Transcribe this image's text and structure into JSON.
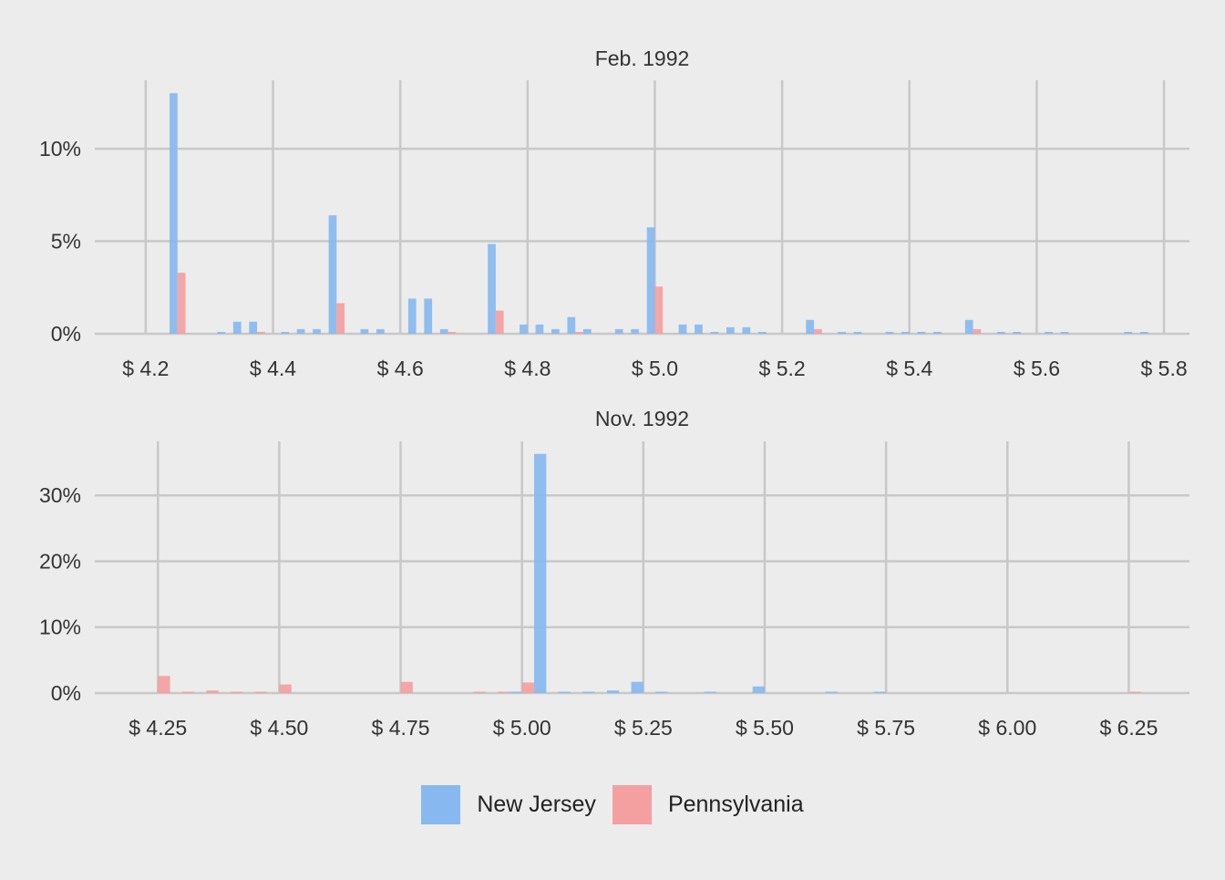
{
  "colors": {
    "background": "#ececec",
    "grid": "#c8c8c8",
    "text": "#333333"
  },
  "legend": {
    "placement": "bottom",
    "items": [
      {
        "label": "New Jersey",
        "color": "#87b9f0"
      },
      {
        "label": "Pennsylvania",
        "color": "#f4a0a0"
      }
    ]
  },
  "chart_data": [
    {
      "type": "bar",
      "title": "Feb. 1992",
      "xlabel": "",
      "ylabel": "",
      "xlim": [
        4.12,
        5.84
      ],
      "ylim": [
        0,
        13.7
      ],
      "x_ticks": [
        4.2,
        4.4,
        4.6,
        4.8,
        5.0,
        5.2,
        5.4,
        5.6,
        5.8
      ],
      "x_tick_labels": [
        "$ 4.2",
        "$ 4.4",
        "$ 4.6",
        "$ 4.8",
        "$ 5.0",
        "$ 5.2",
        "$ 5.4",
        "$ 5.6",
        "$ 5.8"
      ],
      "y_ticks": [
        0,
        5,
        10
      ],
      "y_tick_labels": [
        "0%",
        "5%",
        "10%"
      ],
      "grid": true,
      "bin_width": 0.025,
      "series": [
        {
          "name": "New Jersey",
          "bins": [
            {
              "x": 4.25,
              "y": 13.0
            },
            {
              "x": 4.325,
              "y": 0.1
            },
            {
              "x": 4.35,
              "y": 0.65
            },
            {
              "x": 4.375,
              "y": 0.65
            },
            {
              "x": 4.425,
              "y": 0.1
            },
            {
              "x": 4.45,
              "y": 0.25
            },
            {
              "x": 4.475,
              "y": 0.25
            },
            {
              "x": 4.5,
              "y": 6.4
            },
            {
              "x": 4.55,
              "y": 0.25
            },
            {
              "x": 4.575,
              "y": 0.25
            },
            {
              "x": 4.625,
              "y": 1.9
            },
            {
              "x": 4.65,
              "y": 1.9
            },
            {
              "x": 4.675,
              "y": 0.25
            },
            {
              "x": 4.75,
              "y": 4.85
            },
            {
              "x": 4.8,
              "y": 0.5
            },
            {
              "x": 4.825,
              "y": 0.5
            },
            {
              "x": 4.85,
              "y": 0.25
            },
            {
              "x": 4.875,
              "y": 0.9
            },
            {
              "x": 4.9,
              "y": 0.25
            },
            {
              "x": 4.95,
              "y": 0.25
            },
            {
              "x": 4.975,
              "y": 0.25
            },
            {
              "x": 5.0,
              "y": 5.75
            },
            {
              "x": 5.05,
              "y": 0.5
            },
            {
              "x": 5.075,
              "y": 0.5
            },
            {
              "x": 5.1,
              "y": 0.1
            },
            {
              "x": 5.125,
              "y": 0.35
            },
            {
              "x": 5.15,
              "y": 0.35
            },
            {
              "x": 5.175,
              "y": 0.1
            },
            {
              "x": 5.25,
              "y": 0.75
            },
            {
              "x": 5.3,
              "y": 0.1
            },
            {
              "x": 5.325,
              "y": 0.1
            },
            {
              "x": 5.375,
              "y": 0.1
            },
            {
              "x": 5.4,
              "y": 0.1
            },
            {
              "x": 5.425,
              "y": 0.1
            },
            {
              "x": 5.45,
              "y": 0.1
            },
            {
              "x": 5.5,
              "y": 0.75
            },
            {
              "x": 5.55,
              "y": 0.1
            },
            {
              "x": 5.575,
              "y": 0.1
            },
            {
              "x": 5.625,
              "y": 0.1
            },
            {
              "x": 5.65,
              "y": 0.1
            },
            {
              "x": 5.75,
              "y": 0.1
            },
            {
              "x": 5.775,
              "y": 0.1
            }
          ]
        },
        {
          "name": "Pennsylvania",
          "bins": [
            {
              "x": 4.25,
              "y": 3.3
            },
            {
              "x": 4.375,
              "y": 0.1
            },
            {
              "x": 4.5,
              "y": 1.65
            },
            {
              "x": 4.675,
              "y": 0.1
            },
            {
              "x": 4.75,
              "y": 1.25
            },
            {
              "x": 4.875,
              "y": 0.1
            },
            {
              "x": 5.0,
              "y": 2.55
            },
            {
              "x": 5.25,
              "y": 0.25
            },
            {
              "x": 5.5,
              "y": 0.25
            }
          ]
        }
      ]
    },
    {
      "type": "bar",
      "title": "Nov. 1992",
      "xlabel": "",
      "ylabel": "",
      "xlim": [
        4.12,
        6.375
      ],
      "ylim": [
        0,
        38.2
      ],
      "x_ticks": [
        4.25,
        4.5,
        4.75,
        5.0,
        5.25,
        5.5,
        5.75,
        6.0,
        6.25
      ],
      "x_tick_labels": [
        "$ 4.25",
        "$ 4.50",
        "$ 4.75",
        "$ 5.00",
        "$ 5.25",
        "$ 5.50",
        "$ 5.75",
        "$ 6.00",
        "$ 6.25"
      ],
      "y_ticks": [
        0,
        10,
        20,
        30
      ],
      "y_tick_labels": [
        "0%",
        "10%",
        "20%",
        "30%"
      ],
      "grid": true,
      "bin_width": 0.05,
      "series": [
        {
          "name": "New Jersey",
          "bins": [
            {
              "x": 5.0,
              "y": 0.2
            },
            {
              "x": 5.05,
              "y": 36.3
            },
            {
              "x": 5.1,
              "y": 0.2
            },
            {
              "x": 5.15,
              "y": 0.2
            },
            {
              "x": 5.2,
              "y": 0.4
            },
            {
              "x": 5.25,
              "y": 1.7
            },
            {
              "x": 5.3,
              "y": 0.2
            },
            {
              "x": 5.4,
              "y": 0.2
            },
            {
              "x": 5.5,
              "y": 1.0
            },
            {
              "x": 5.65,
              "y": 0.2
            },
            {
              "x": 5.75,
              "y": 0.2
            }
          ]
        },
        {
          "name": "Pennsylvania",
          "bins": [
            {
              "x": 4.25,
              "y": 2.6
            },
            {
              "x": 4.3,
              "y": 0.2
            },
            {
              "x": 4.35,
              "y": 0.4
            },
            {
              "x": 4.4,
              "y": 0.2
            },
            {
              "x": 4.45,
              "y": 0.2
            },
            {
              "x": 4.5,
              "y": 1.3
            },
            {
              "x": 4.75,
              "y": 1.7
            },
            {
              "x": 4.9,
              "y": 0.2
            },
            {
              "x": 4.95,
              "y": 0.2
            },
            {
              "x": 5.0,
              "y": 1.6
            },
            {
              "x": 6.25,
              "y": 0.2
            }
          ]
        }
      ]
    }
  ]
}
